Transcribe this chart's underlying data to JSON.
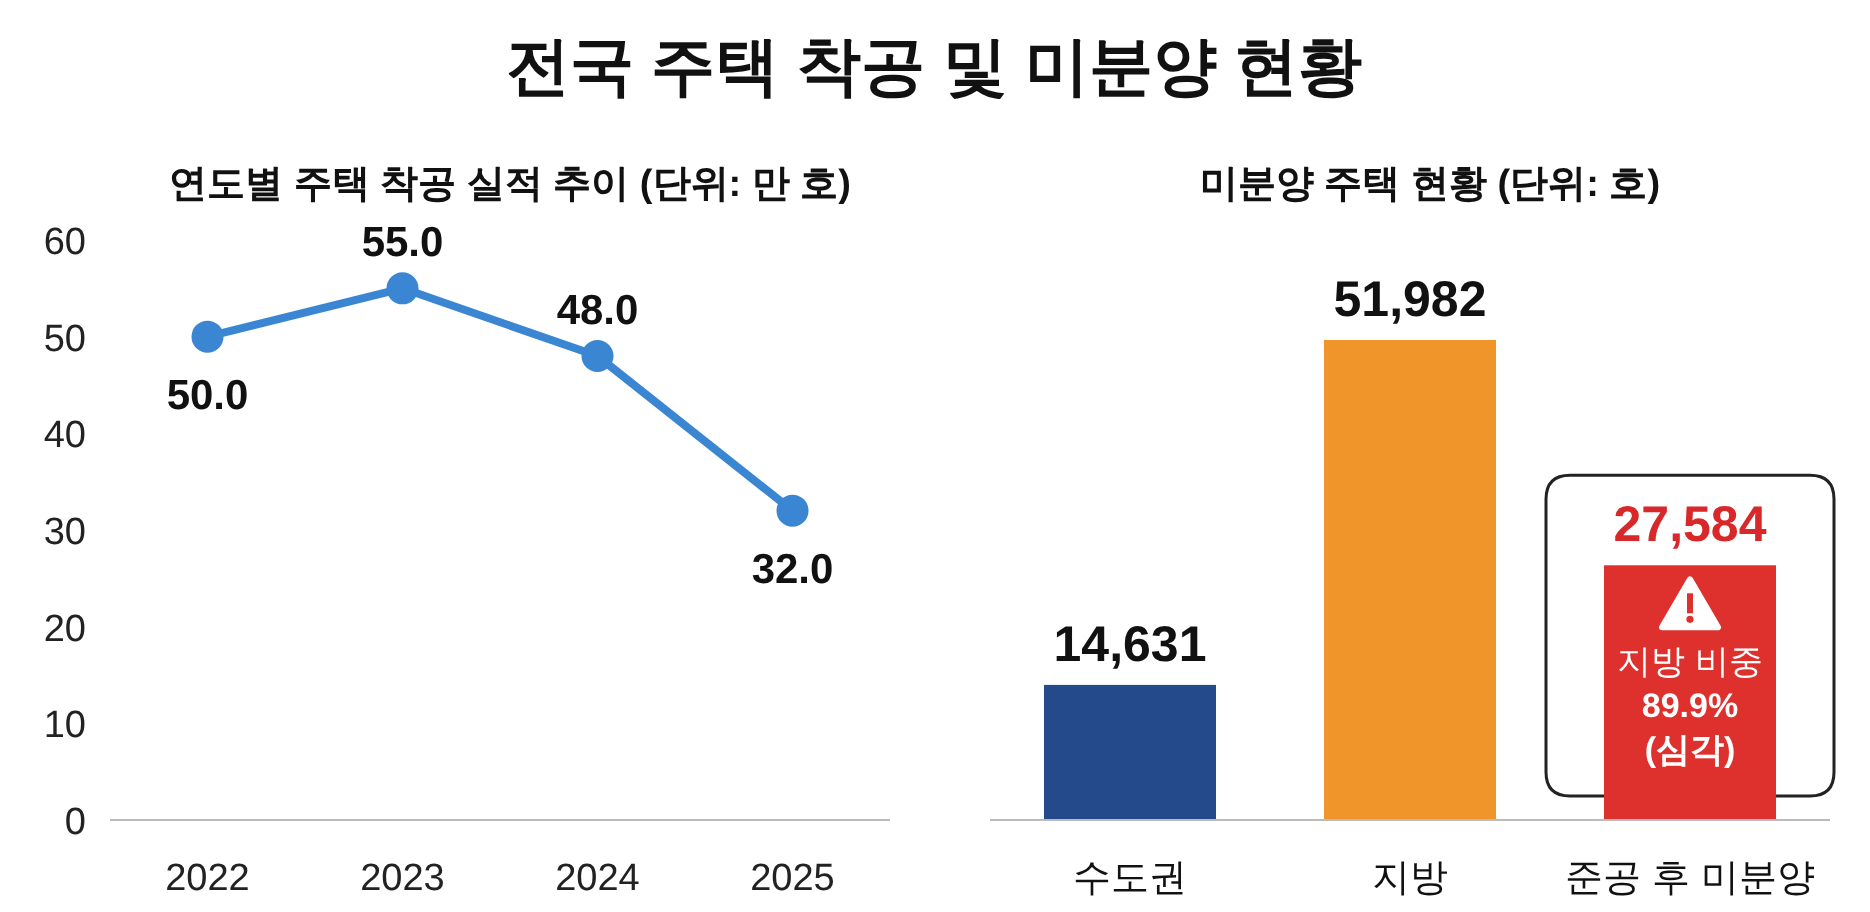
{
  "chart_data": [
    {
      "type": "line",
      "title": "전국 주택 착공 및 미분양 현황",
      "subtitle": "연도별 주택 착공 실적 추이 (단위: 만 호)",
      "categories": [
        "2022",
        "2023",
        "2024",
        "2025"
      ],
      "series": [
        {
          "color": "#3b86d3",
          "values": [
            50.0,
            55.0,
            48.0,
            32.0
          ],
          "value_labels": [
            "50.0",
            "55.0",
            "48.0",
            "32.0"
          ]
        }
      ],
      "ylim": [
        0,
        60
      ],
      "yticks": [
        0,
        10,
        20,
        30,
        40,
        50,
        60
      ],
      "marker": "circle",
      "grid": false
    },
    {
      "type": "bar",
      "title": "미분양 주택 현황 (단위: 호)",
      "categories": [
        "수도권",
        "지방",
        "준공 후 미분양"
      ],
      "values": [
        14631,
        51982,
        27584
      ],
      "colors": [
        "#244a8c",
        "#f0952a",
        "#de302c"
      ],
      "value_labels": [
        "14,631",
        "51,982",
        "27,584"
      ],
      "annotations": [
        "지방 비중\n89.9%\n(심각)"
      ]
    }
  ]
}
